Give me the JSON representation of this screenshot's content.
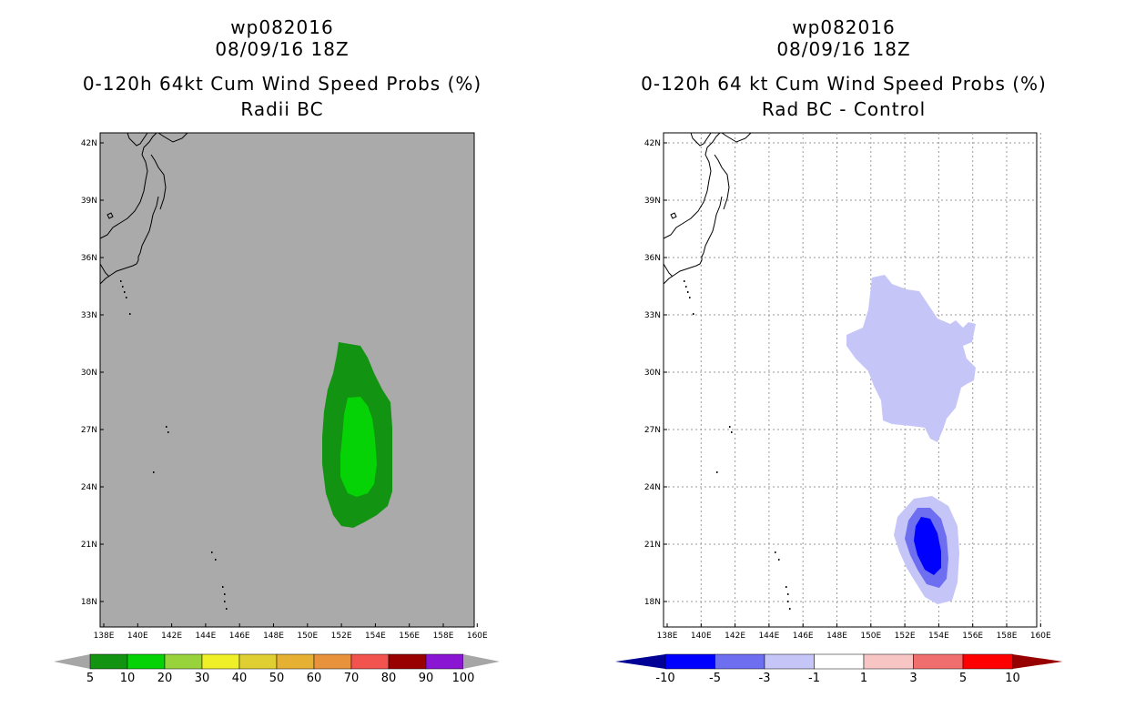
{
  "left": {
    "storm_id": "wp082016",
    "datetime": "08/09/16 18Z",
    "title": "0-120h 64kt Cum Wind Speed Probs (%)",
    "subtitle": "Radii BC",
    "colorbar": {
      "labels": [
        "5",
        "10",
        "20",
        "30",
        "40",
        "50",
        "60",
        "70",
        "80",
        "90",
        "100"
      ],
      "colors": [
        "#129312",
        "#06d306",
        "#98d33c",
        "#f0f028",
        "#e0cf33",
        "#e6b033",
        "#e8923b",
        "#f2534e",
        "#990000",
        "#8a15d2"
      ],
      "under_color": "#a6a6a6",
      "over_color": "#a6a6a6"
    },
    "background_color": "#aaaaaa"
  },
  "right": {
    "storm_id": "wp082016",
    "datetime": "08/09/16 18Z",
    "title": "0-120h 64 kt Cum Wind Speed Probs (%)",
    "subtitle": "Rad BC - Control",
    "colorbar": {
      "labels": [
        "-10",
        "-5",
        "-3",
        "-1",
        "1",
        "3",
        "5",
        "10"
      ],
      "colors": [
        "#0000ff",
        "#6e6ef0",
        "#c5c5f8",
        "#ffffff",
        "#f8c5c5",
        "#f06e6e",
        "#ff0000"
      ],
      "under_color": "#000096",
      "over_color": "#960000"
    },
    "background_color": "#ffffff"
  },
  "axes": {
    "lon_ticks": [
      "138E",
      "140E",
      "142E",
      "144E",
      "146E",
      "148E",
      "150E",
      "152E",
      "154E",
      "156E",
      "158E",
      "160E"
    ],
    "lat_ticks": [
      "42N",
      "39N",
      "36N",
      "33N",
      "30N",
      "27N",
      "24N",
      "21N",
      "18N"
    ]
  },
  "colors": {
    "left_outer": "#129312",
    "left_inner": "#06d306",
    "right_light": "#c5c5f8",
    "right_mid": "#6e6ef0",
    "right_dark": "#0000ff"
  }
}
